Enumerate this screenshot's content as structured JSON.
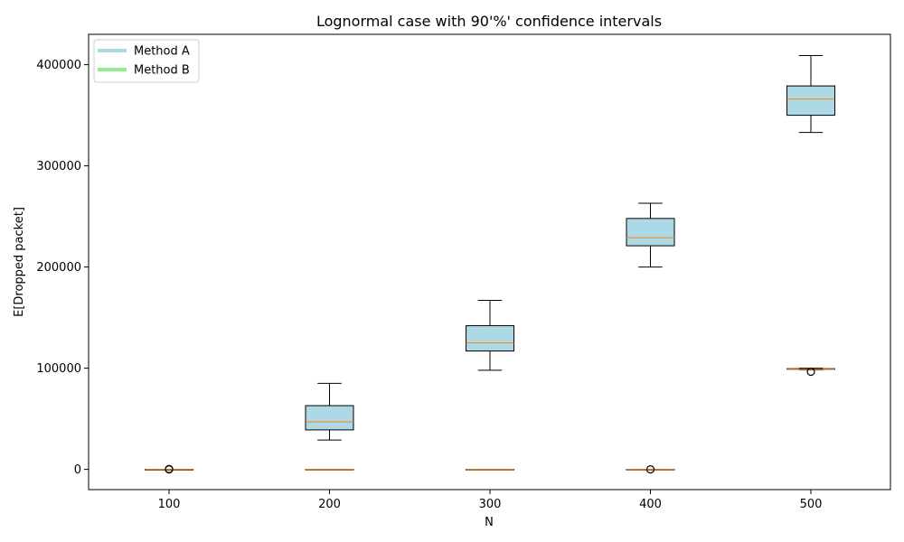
{
  "chart_data": {
    "type": "box",
    "title": "Lognormal case with 90'%' confidence intervals",
    "xlabel": "N",
    "ylabel": "E[Dropped packet]",
    "categories": [
      "100",
      "200",
      "300",
      "400",
      "500"
    ],
    "ylim": [
      -20000,
      430000
    ],
    "yticks": [
      0,
      100000,
      200000,
      300000,
      400000
    ],
    "ytick_labels": [
      "0",
      "100000",
      "200000",
      "300000",
      "400000"
    ],
    "legend_position": "upper-left",
    "series": [
      {
        "name": "Method A",
        "color": "#add8e6",
        "boxes": [
          {
            "whisker_low": 0,
            "q1": 0,
            "median": 0,
            "q3": 0,
            "whisker_high": 0,
            "outliers": [
              300
            ]
          },
          {
            "whisker_low": 29000,
            "q1": 39000,
            "median": 47000,
            "q3": 63000,
            "whisker_high": 85000,
            "outliers": []
          },
          {
            "whisker_low": 98000,
            "q1": 117000,
            "median": 125000,
            "q3": 142000,
            "whisker_high": 167000,
            "outliers": []
          },
          {
            "whisker_low": 200000,
            "q1": 221000,
            "median": 229000,
            "q3": 248000,
            "whisker_high": 263000,
            "outliers": []
          },
          {
            "whisker_low": 333000,
            "q1": 350000,
            "median": 366000,
            "q3": 379000,
            "whisker_high": 409000,
            "outliers": []
          }
        ]
      },
      {
        "name": "Method B",
        "color": "#90ee90",
        "boxes": [
          {
            "whisker_low": 0,
            "q1": 0,
            "median": 0,
            "q3": 0,
            "whisker_high": 0,
            "outliers": [
              0
            ]
          },
          {
            "whisker_low": 0,
            "q1": 0,
            "median": 0,
            "q3": 0,
            "whisker_high": 0,
            "outliers": []
          },
          {
            "whisker_low": 0,
            "q1": 0,
            "median": 0,
            "q3": 0,
            "whisker_high": 0,
            "outliers": []
          },
          {
            "whisker_low": 0,
            "q1": 0,
            "median": 0,
            "q3": 0,
            "whisker_high": 0,
            "outliers": [
              0
            ]
          },
          {
            "whisker_low": 98500,
            "q1": 99000,
            "median": 99000,
            "q3": 99500,
            "whisker_high": 100000,
            "outliers": [
              96500
            ]
          }
        ]
      }
    ],
    "median_color": "#ff7f0e"
  }
}
